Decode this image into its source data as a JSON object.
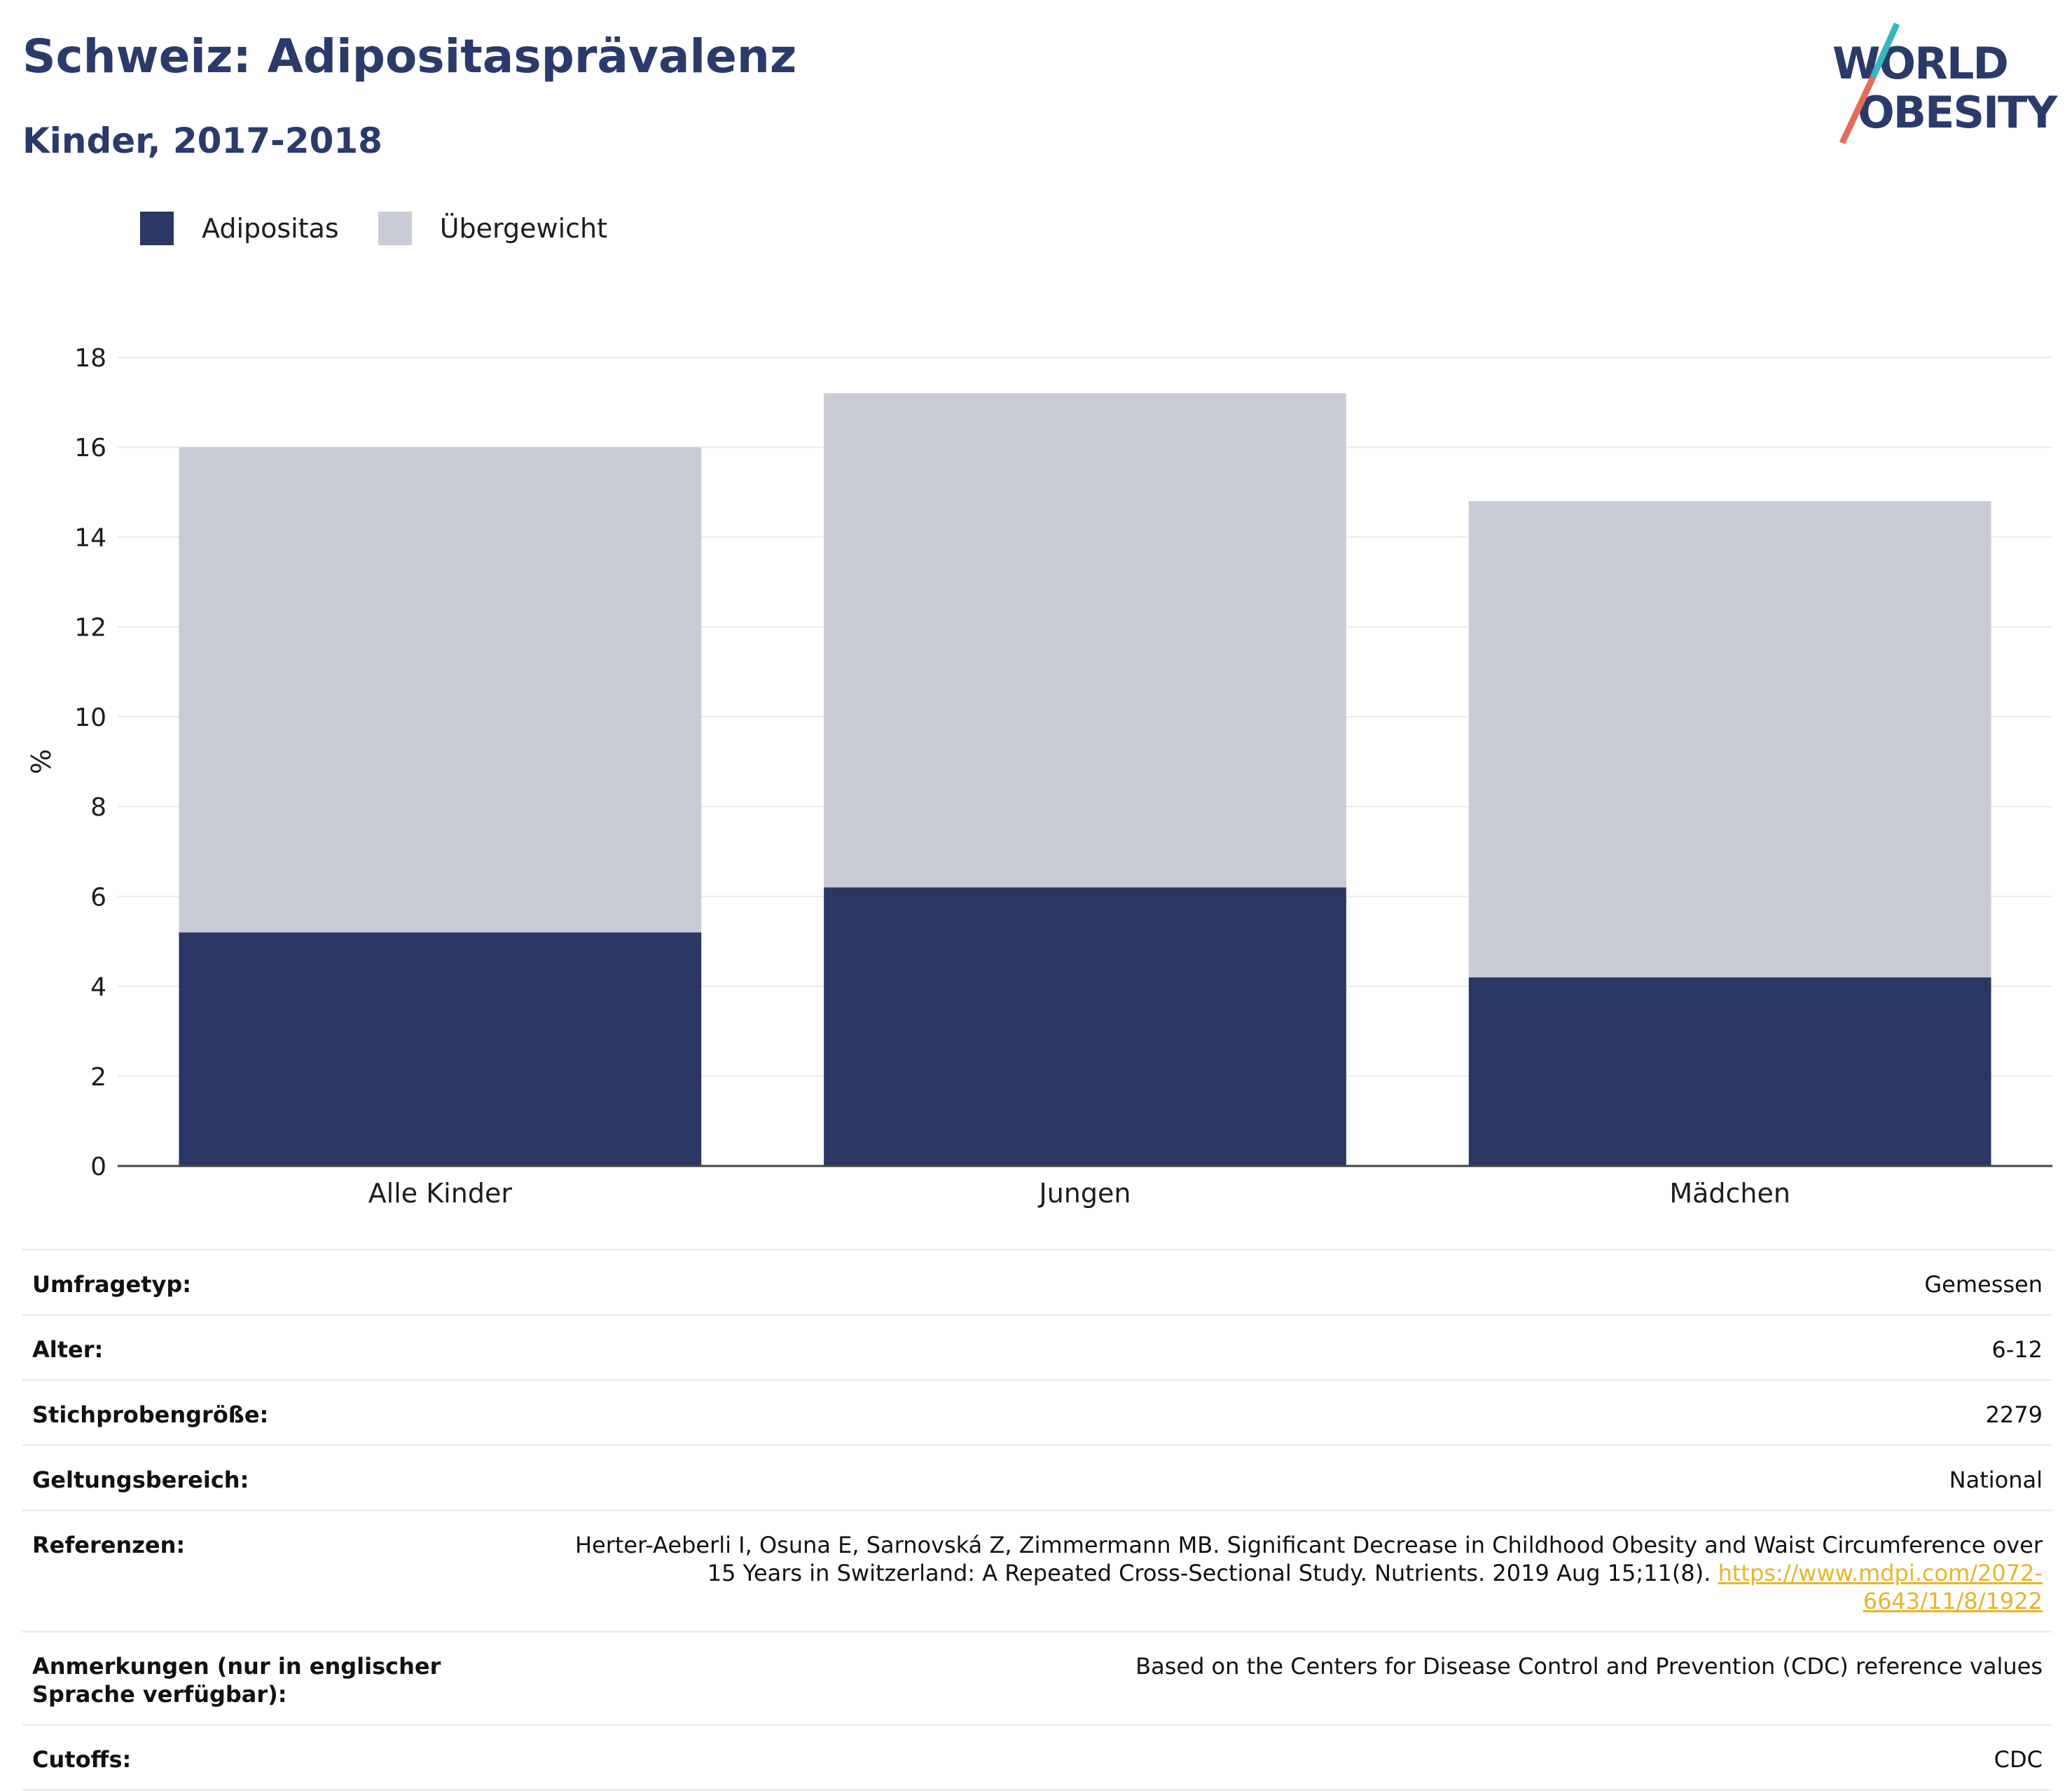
{
  "header": {
    "title": "Schweiz: Adipositasprävalenz",
    "subtitle": "Kinder, 2017-2018"
  },
  "logo": {
    "line1": "WORLD",
    "line2": "OBESITY"
  },
  "colors": {
    "adipositas": "#2a3764",
    "uebergewicht": "#c9ccd7",
    "accent_link": "#e8b52a",
    "title": "#2a3a6a"
  },
  "chart_data": {
    "type": "bar",
    "stacked": true,
    "categories": [
      "Alle Kinder",
      "Jungen",
      "Mädchen"
    ],
    "series": [
      {
        "name": "Adipositas",
        "values": [
          5.2,
          6.2,
          4.2
        ]
      },
      {
        "name": "Übergewicht",
        "values": [
          10.8,
          11.0,
          10.6
        ]
      }
    ],
    "ylabel": "%",
    "ylim": [
      0,
      18
    ],
    "yticks": [
      0,
      2,
      4,
      6,
      8,
      10,
      12,
      14,
      16,
      18
    ],
    "grid": true,
    "legend": "top-left"
  },
  "meta": [
    {
      "key": "Umfragetyp:",
      "value": "Gemessen"
    },
    {
      "key": "Alter:",
      "value": "6-12"
    },
    {
      "key": "Stichprobengröße:",
      "value": "2279"
    },
    {
      "key": "Geltungsbereich:",
      "value": "National"
    },
    {
      "key": "Referenzen:",
      "value": "Herter-Aeberli I, Osuna E, Sarnovská Z, Zimmermann MB. Significant Decrease in Childhood Obesity and Waist Circumference over 15 Years in Switzerland: A Repeated Cross-Sectional Study. Nutrients. 2019 Aug 15;11(8).",
      "link": "https://www.mdpi.com/2072-6643/11/8/1922"
    },
    {
      "key": "Anmerkungen (nur in englischer Sprache verfügbar):",
      "value": "Based on the Centers for Disease Control and Prevention (CDC) reference values"
    },
    {
      "key": "Cutoffs:",
      "value": "CDC"
    }
  ]
}
